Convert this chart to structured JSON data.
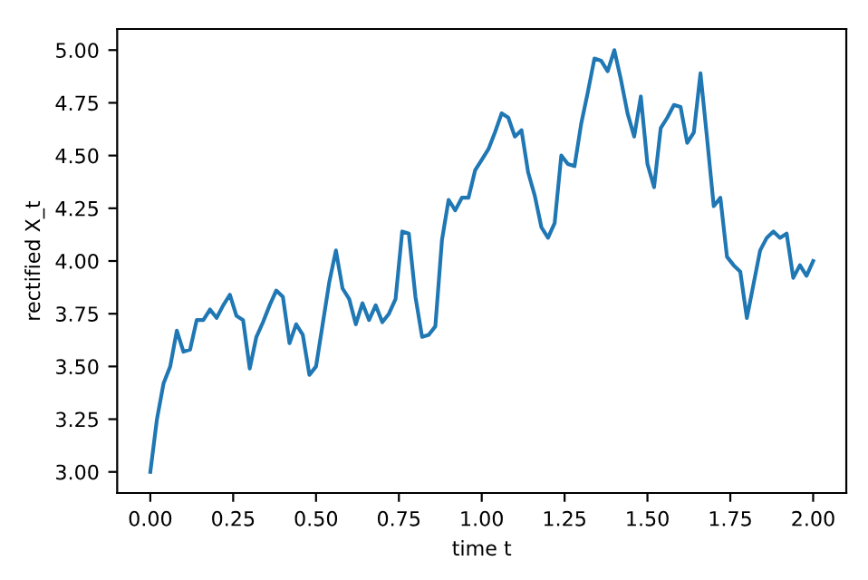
{
  "chart_data": {
    "type": "line",
    "xlabel": "time t",
    "ylabel": "rectified X_t",
    "x": [
      0.0,
      0.02,
      0.04,
      0.06,
      0.08,
      0.1,
      0.12,
      0.14,
      0.16,
      0.18,
      0.2,
      0.22,
      0.24,
      0.26,
      0.28,
      0.3,
      0.32,
      0.34,
      0.36,
      0.38,
      0.4,
      0.42,
      0.44,
      0.46,
      0.48,
      0.5,
      0.52,
      0.54,
      0.56,
      0.58,
      0.6,
      0.62,
      0.64,
      0.66,
      0.68,
      0.7,
      0.72,
      0.74,
      0.76,
      0.78,
      0.8,
      0.82,
      0.84,
      0.86,
      0.88,
      0.9,
      0.92,
      0.94,
      0.96,
      0.98,
      1.0,
      1.02,
      1.04,
      1.06,
      1.08,
      1.1,
      1.12,
      1.14,
      1.16,
      1.18,
      1.2,
      1.22,
      1.24,
      1.26,
      1.28,
      1.3,
      1.32,
      1.34,
      1.36,
      1.38,
      1.4,
      1.42,
      1.44,
      1.46,
      1.48,
      1.5,
      1.52,
      1.54,
      1.56,
      1.58,
      1.6,
      1.62,
      1.64,
      1.66,
      1.68,
      1.7,
      1.72,
      1.74,
      1.76,
      1.78,
      1.8,
      1.82,
      1.84,
      1.86,
      1.88,
      1.9,
      1.92,
      1.94,
      1.96,
      1.98,
      2.0
    ],
    "series": [
      {
        "color": "#1f77b4",
        "values": [
          3.0,
          3.25,
          3.42,
          3.5,
          3.67,
          3.57,
          3.58,
          3.72,
          3.72,
          3.77,
          3.73,
          3.79,
          3.84,
          3.74,
          3.72,
          3.49,
          3.64,
          3.71,
          3.79,
          3.86,
          3.83,
          3.61,
          3.7,
          3.65,
          3.46,
          3.5,
          3.7,
          3.9,
          4.05,
          3.87,
          3.82,
          3.7,
          3.8,
          3.72,
          3.79,
          3.71,
          3.75,
          3.82,
          4.14,
          4.13,
          3.83,
          3.64,
          3.65,
          3.69,
          4.1,
          4.29,
          4.24,
          4.3,
          4.3,
          4.43,
          4.48,
          4.53,
          4.61,
          4.7,
          4.68,
          4.59,
          4.62,
          4.42,
          4.31,
          4.16,
          4.11,
          4.18,
          4.5,
          4.46,
          4.45,
          4.65,
          4.8,
          4.96,
          4.95,
          4.9,
          5.0,
          4.86,
          4.7,
          4.59,
          4.78,
          4.46,
          4.35,
          4.63,
          4.68,
          4.74,
          4.73,
          4.56,
          4.61,
          4.89,
          4.58,
          4.26,
          4.3,
          4.02,
          3.98,
          3.95,
          3.73,
          3.89,
          4.05,
          4.11,
          4.14,
          4.11,
          4.13,
          3.92,
          3.98,
          3.93,
          4.0
        ]
      }
    ],
    "xlim": [
      -0.1,
      2.1
    ],
    "ylim": [
      2.9,
      5.1
    ],
    "xticks": [
      {
        "value": 0,
        "label": "0.00"
      },
      0.25,
      {
        "value": 0.5,
        "label": "0.50"
      },
      0.75,
      {
        "value": 1,
        "label": "1.00"
      },
      1.25,
      {
        "value": 1.5,
        "label": "1.50"
      },
      1.75,
      {
        "value": 2,
        "label": "2.00"
      }
    ],
    "yticks": [
      {
        "value": 3,
        "label": "3.00"
      },
      3.25,
      {
        "value": 3.5,
        "label": "3.50"
      },
      3.75,
      {
        "value": 4,
        "label": "4.00"
      },
      4.25,
      {
        "value": 4.5,
        "label": "4.50"
      },
      4.75,
      {
        "value": 5,
        "label": "5.00"
      }
    ],
    "grid": false,
    "legend": false
  }
}
